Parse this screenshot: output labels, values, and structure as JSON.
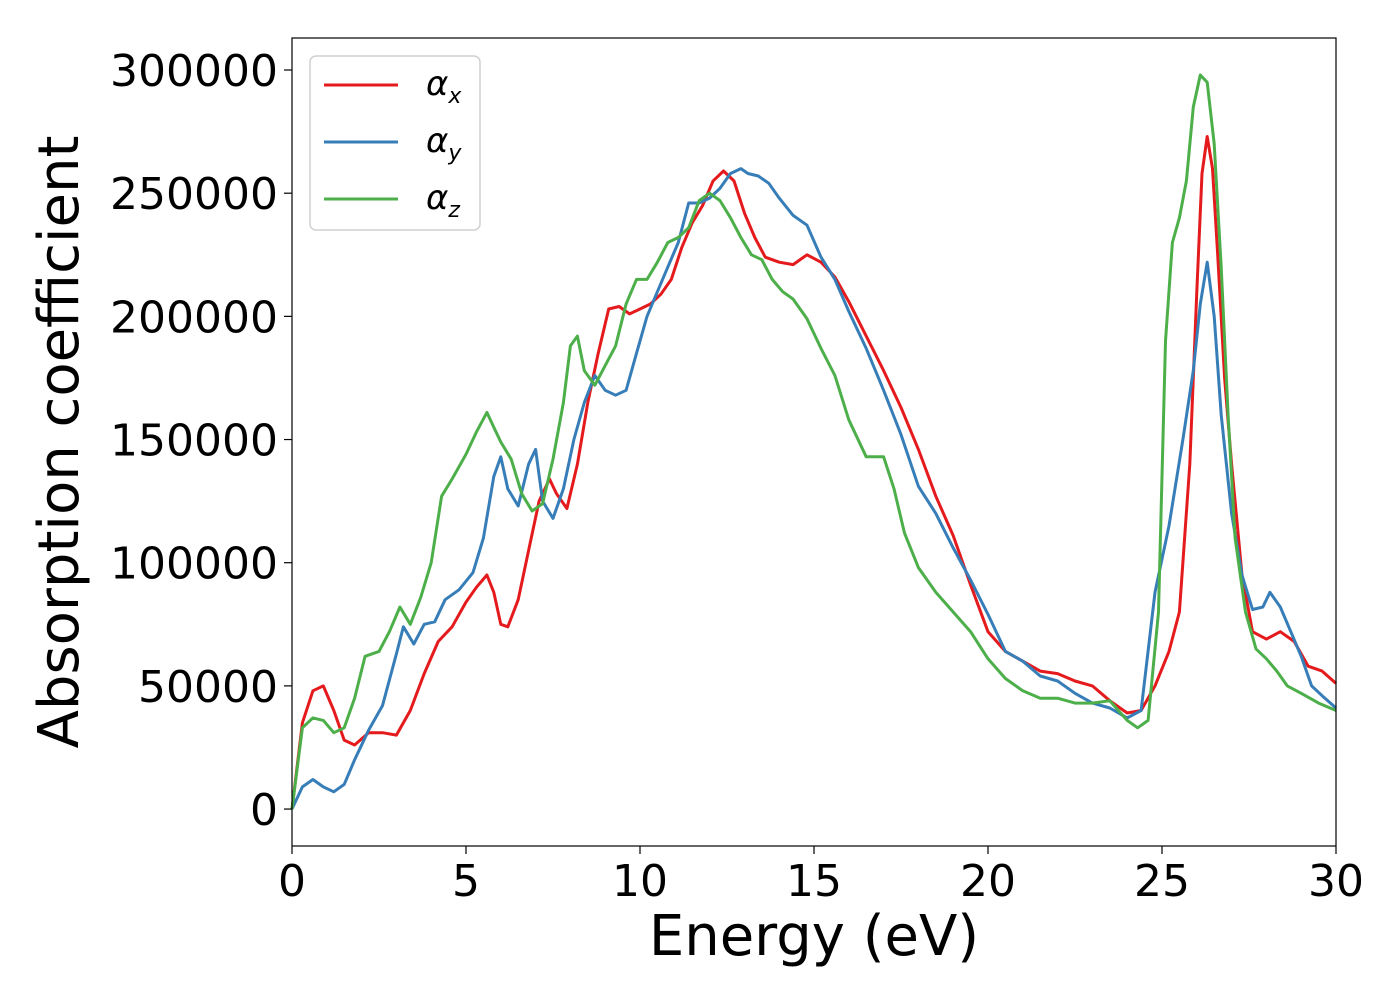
{
  "chart_data": {
    "type": "line",
    "xlabel": "Energy (eV)",
    "ylabel": "Absorption coefficient",
    "xlim": [
      0,
      30
    ],
    "ylim": [
      -15000,
      313000
    ],
    "xticks": [
      0,
      5,
      10,
      15,
      20,
      25,
      30
    ],
    "yticks": [
      0,
      50000,
      100000,
      150000,
      200000,
      250000,
      300000
    ],
    "grid": false,
    "legend_position": "top-left",
    "series": [
      {
        "name": "α",
        "subscript": "x",
        "color": "#e41a1c",
        "x": [
          0,
          0.3,
          0.6,
          0.9,
          1.2,
          1.5,
          1.8,
          2.2,
          2.6,
          3.0,
          3.4,
          3.8,
          4.2,
          4.6,
          5.0,
          5.3,
          5.6,
          5.8,
          6.0,
          6.2,
          6.5,
          6.8,
          7.1,
          7.4,
          7.6,
          7.9,
          8.2,
          8.5,
          8.8,
          9.1,
          9.4,
          9.7,
          10.0,
          10.3,
          10.6,
          10.9,
          11.2,
          11.5,
          11.8,
          12.1,
          12.4,
          12.7,
          13.0,
          13.3,
          13.6,
          14.0,
          14.4,
          14.8,
          15.2,
          15.6,
          16.0,
          16.5,
          17.0,
          17.5,
          18.0,
          18.5,
          19.0,
          19.5,
          20.0,
          20.5,
          21.0,
          21.5,
          22.0,
          22.5,
          23.0,
          23.5,
          24.0,
          24.4,
          24.8,
          25.2,
          25.5,
          25.8,
          26.0,
          26.15,
          26.3,
          26.45,
          26.6,
          26.8,
          27.0,
          27.3,
          27.6,
          28.0,
          28.4,
          28.8,
          29.2,
          29.6,
          30.0
        ],
        "values": [
          0,
          35000,
          48000,
          50000,
          40000,
          28000,
          26000,
          31000,
          31000,
          30000,
          40000,
          55000,
          68000,
          74000,
          84000,
          90000,
          95000,
          88000,
          75000,
          74000,
          85000,
          105000,
          125000,
          134000,
          128000,
          122000,
          140000,
          165000,
          185000,
          203000,
          204000,
          201000,
          203000,
          205000,
          209000,
          215000,
          228000,
          238000,
          245000,
          255000,
          259000,
          255000,
          242000,
          232000,
          224000,
          222000,
          221000,
          225000,
          222000,
          216000,
          206000,
          192000,
          178000,
          163000,
          146000,
          127000,
          111000,
          91000,
          72000,
          64000,
          60000,
          56000,
          55000,
          52000,
          50000,
          44000,
          39000,
          40000,
          50000,
          64000,
          80000,
          140000,
          210000,
          258000,
          273000,
          260000,
          225000,
          175000,
          140000,
          95000,
          72000,
          69000,
          72000,
          68000,
          58000,
          56000,
          51000
        ]
      },
      {
        "name": "α",
        "subscript": "y",
        "color": "#377eb8",
        "x": [
          0,
          0.3,
          0.6,
          0.9,
          1.2,
          1.5,
          1.8,
          2.2,
          2.6,
          3.0,
          3.2,
          3.5,
          3.8,
          4.1,
          4.4,
          4.8,
          5.2,
          5.5,
          5.8,
          6.0,
          6.2,
          6.5,
          6.8,
          7.0,
          7.2,
          7.5,
          7.8,
          8.1,
          8.4,
          8.7,
          9.0,
          9.3,
          9.6,
          9.9,
          10.2,
          10.5,
          10.8,
          11.1,
          11.4,
          11.7,
          12.0,
          12.3,
          12.6,
          12.9,
          13.1,
          13.4,
          13.7,
          14.0,
          14.4,
          14.8,
          15.2,
          15.6,
          16.0,
          16.5,
          17.0,
          17.5,
          18.0,
          18.5,
          19.0,
          19.5,
          20.0,
          20.5,
          21.0,
          21.5,
          22.0,
          22.5,
          23.0,
          23.5,
          24.0,
          24.4,
          24.8,
          25.2,
          25.6,
          25.9,
          26.1,
          26.3,
          26.5,
          26.7,
          27.0,
          27.3,
          27.6,
          27.9,
          28.1,
          28.4,
          28.7,
          29.0,
          29.3,
          29.6,
          30.0
        ],
        "values": [
          0,
          9000,
          12000,
          9000,
          7000,
          10000,
          20000,
          32000,
          42000,
          63000,
          74000,
          67000,
          75000,
          76000,
          85000,
          89000,
          96000,
          110000,
          135000,
          143000,
          130000,
          123000,
          140000,
          146000,
          125000,
          118000,
          130000,
          150000,
          165000,
          176000,
          170000,
          168000,
          170000,
          185000,
          200000,
          210000,
          220000,
          230000,
          246000,
          246000,
          248000,
          252000,
          258000,
          260000,
          258000,
          257000,
          254000,
          248000,
          241000,
          237000,
          224000,
          215000,
          202000,
          187000,
          170000,
          152000,
          131000,
          120000,
          106000,
          93000,
          79000,
          64000,
          60000,
          54000,
          52000,
          47000,
          43000,
          41000,
          37000,
          40000,
          88000,
          115000,
          150000,
          178000,
          205000,
          222000,
          200000,
          160000,
          120000,
          95000,
          81000,
          82000,
          88000,
          82000,
          72000,
          62000,
          50000,
          46000,
          41000
        ]
      },
      {
        "name": "α",
        "subscript": "z",
        "color": "#4daf4a",
        "x": [
          0,
          0.3,
          0.6,
          0.9,
          1.2,
          1.5,
          1.8,
          2.1,
          2.5,
          2.8,
          3.1,
          3.4,
          3.7,
          4.0,
          4.3,
          4.6,
          5.0,
          5.3,
          5.6,
          5.8,
          6.0,
          6.3,
          6.6,
          6.9,
          7.2,
          7.5,
          7.8,
          8.0,
          8.2,
          8.4,
          8.7,
          9.0,
          9.3,
          9.6,
          9.9,
          10.2,
          10.5,
          10.8,
          11.1,
          11.4,
          11.7,
          12.0,
          12.3,
          12.6,
          12.9,
          13.2,
          13.5,
          13.8,
          14.1,
          14.4,
          14.8,
          15.2,
          15.6,
          16.0,
          16.5,
          17.0,
          17.3,
          17.6,
          18.0,
          18.5,
          19.0,
          19.5,
          20.0,
          20.5,
          21.0,
          21.5,
          22.0,
          22.5,
          23.0,
          23.5,
          24.0,
          24.3,
          24.6,
          24.9,
          25.1,
          25.3,
          25.5,
          25.7,
          25.9,
          26.1,
          26.3,
          26.5,
          26.7,
          26.9,
          27.1,
          27.4,
          27.7,
          28.0,
          28.3,
          28.6,
          29.0,
          29.5,
          30.0
        ],
        "values": [
          0,
          33000,
          37000,
          36000,
          31000,
          33000,
          45000,
          62000,
          64000,
          72000,
          82000,
          75000,
          86000,
          100000,
          127000,
          134000,
          144000,
          153000,
          161000,
          155000,
          149000,
          142000,
          128000,
          121000,
          124000,
          142000,
          165000,
          188000,
          192000,
          178000,
          172000,
          180000,
          188000,
          205000,
          215000,
          215000,
          222000,
          230000,
          232000,
          236000,
          247000,
          250000,
          247000,
          240000,
          232000,
          225000,
          223000,
          215000,
          210000,
          207000,
          199000,
          187000,
          176000,
          158000,
          143000,
          143000,
          130000,
          112000,
          98000,
          88000,
          80000,
          72000,
          61000,
          53000,
          48000,
          45000,
          45000,
          43000,
          43000,
          44000,
          36000,
          33000,
          36000,
          80000,
          190000,
          230000,
          240000,
          255000,
          285000,
          298000,
          295000,
          270000,
          220000,
          160000,
          110000,
          80000,
          65000,
          61000,
          56000,
          50000,
          47000,
          43000,
          40000
        ]
      }
    ]
  }
}
